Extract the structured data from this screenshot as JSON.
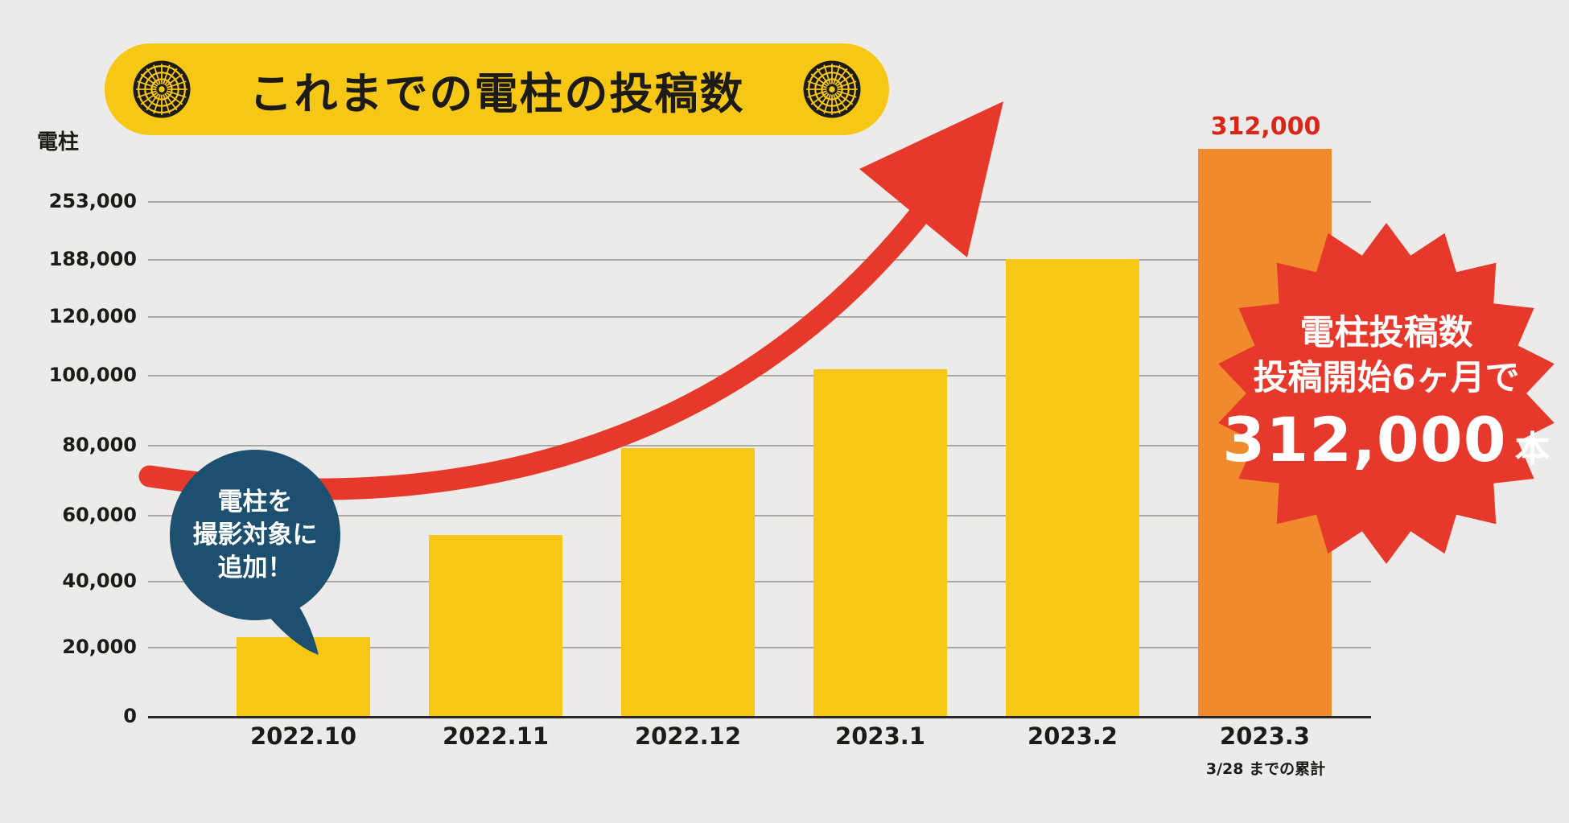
{
  "page": {
    "background": "#ecebe9"
  },
  "header": {
    "title": "これまでの電柱の投稿数",
    "banner_color": "#f6c715",
    "icon": "manhole-rosette"
  },
  "chart_data": {
    "type": "bar",
    "title": "これまでの電柱の投稿数",
    "unit_label": "電柱",
    "categories": [
      "2022.10",
      "2022.11",
      "2022.12",
      "2023.1",
      "2023.2",
      "2023.3"
    ],
    "values": [
      23000,
      54000,
      79000,
      102000,
      188000,
      312000
    ],
    "bar_colors": [
      "#f6c715",
      "#f6c715",
      "#f6c715",
      "#f6c715",
      "#f6c715",
      "#f08a2c"
    ],
    "y_ticks": [
      0,
      20000,
      40000,
      60000,
      80000,
      100000,
      120000,
      188000,
      253000
    ],
    "y_tick_labels": [
      "0",
      "20,000",
      "40,000",
      "60,000",
      "80,000",
      "100,000",
      "120,000",
      "188,000",
      "253,000"
    ],
    "ylim": [
      0,
      330000
    ],
    "grid": true,
    "legend": false,
    "last_bar_value_label": "312,000",
    "value_label_color": "#d92619",
    "x_note": "3/28 までの累計"
  },
  "speech_bubble": {
    "lines": [
      "電柱を",
      "撮影対象に",
      "追加！"
    ],
    "color": "#1d4f6e",
    "text_color": "#ffffff"
  },
  "badge": {
    "line1": "電柱投稿数",
    "line2": "投稿開始6ヶ月で",
    "number": "312,000",
    "unit": "本",
    "color": "#e6392b",
    "text_color": "#ffffff"
  },
  "arrow": {
    "color": "#e6392b"
  }
}
